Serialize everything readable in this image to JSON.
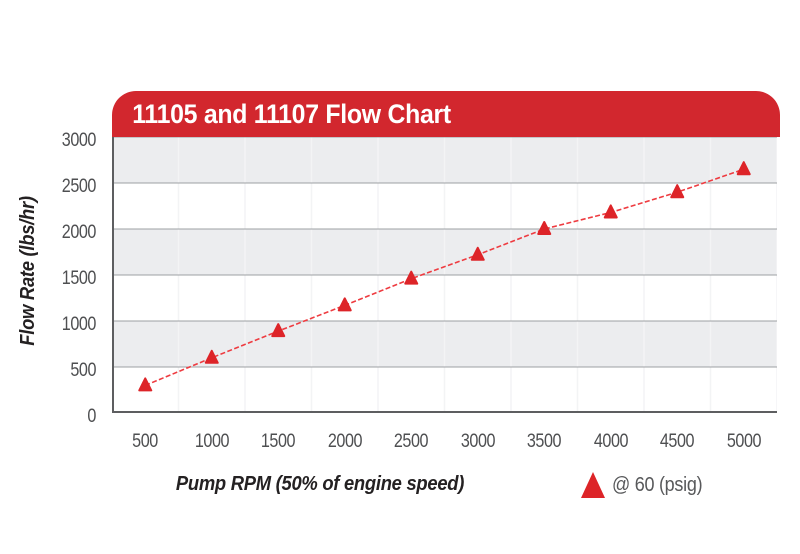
{
  "header": {
    "title": "11105 and 11107 Flow Chart"
  },
  "chart_data": {
    "type": "line",
    "title": "11105 and 11107 Flow Chart",
    "xlabel": "Pump RPM (50% of engine speed)",
    "ylabel": "Flow Rate (lbs/hr)",
    "x": [
      500,
      1000,
      1500,
      2000,
      2500,
      3000,
      3500,
      4000,
      4500,
      5000
    ],
    "series": [
      {
        "name": "@ 60 (psig)",
        "marker": "triangle-up",
        "line_style": "dashed",
        "values": [
          300,
          600,
          890,
          1170,
          1460,
          1720,
          2000,
          2180,
          2400,
          2650
        ]
      }
    ],
    "xlim": [
      250,
      5250
    ],
    "ylim": [
      0,
      3000
    ],
    "yticks": [
      0,
      500,
      1000,
      1500,
      2000,
      2500,
      3000
    ],
    "xticks": [
      500,
      1000,
      1500,
      2000,
      2500,
      3000,
      3500,
      4000,
      4500,
      5000
    ],
    "grid": {
      "horizontal_band_fill": true,
      "vertical_lines": "category-boundaries"
    },
    "legend": {
      "label": "@ 60 (psig)",
      "position": "bottom-right"
    }
  },
  "colors": {
    "header_red": "#d2272e",
    "marker_red": "#dd2428",
    "line_red": "#ee3b40",
    "band_gray": "#ecedef",
    "band_white": "#ffffff",
    "band_line": "#9da0a3",
    "axis_line": "#5d5e60",
    "grid_vertical": "#f3f4f5",
    "tick_text": "#4e4f51",
    "axis_title_text": "#242122",
    "legend_text": "#58595b"
  }
}
